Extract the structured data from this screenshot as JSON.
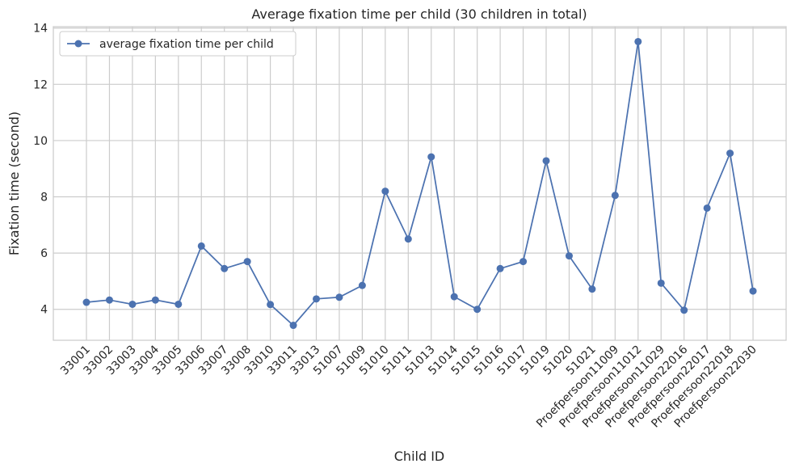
{
  "chart_data": {
    "type": "line",
    "title": "Average fixation time per child (30 children in total)",
    "xlabel": "Child ID",
    "ylabel": "Fixation time (second)",
    "categories": [
      "33001",
      "33002",
      "33003",
      "33004",
      "33005",
      "33006",
      "33007",
      "33008",
      "33010",
      "33011",
      "33013",
      "51007",
      "51009",
      "51010",
      "51011",
      "51013",
      "51014",
      "51015",
      "51016",
      "51017",
      "51019",
      "51020",
      "51021",
      "Proefpersoon11009",
      "Proefpersoon11012",
      "Proefpersoon11029",
      "Proefpersoon22016",
      "Proefpersoon22017",
      "Proefpersoon22018",
      "Proefpersoon22030"
    ],
    "series": [
      {
        "name": "average fixation time per child",
        "color": "#4c72b0",
        "values": [
          4.25,
          4.33,
          4.18,
          4.33,
          4.18,
          6.25,
          5.45,
          5.7,
          4.17,
          3.43,
          4.37,
          4.43,
          4.85,
          8.2,
          6.5,
          9.42,
          4.45,
          4.0,
          5.45,
          5.7,
          9.28,
          5.9,
          4.72,
          8.05,
          13.52,
          4.93,
          3.97,
          7.6,
          9.55,
          4.65
        ]
      }
    ],
    "ylim": [
      2.9,
      14.05
    ],
    "yticks": [
      4,
      6,
      8,
      10,
      12,
      14
    ],
    "grid": true,
    "legend_position": "top-left"
  }
}
